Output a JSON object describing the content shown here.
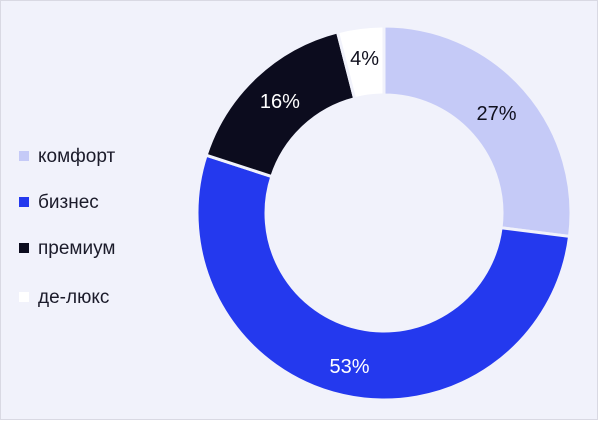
{
  "chart_data": {
    "type": "pie",
    "title": "",
    "categories": [
      "комфорт",
      "бизнес",
      "премиум",
      "де-люкс"
    ],
    "values": [
      27,
      53,
      16,
      4
    ],
    "value_labels": [
      "27%",
      "53%",
      "16%",
      "4%"
    ],
    "colors": [
      "#c5caf7",
      "#2439ee",
      "#0c0c1e",
      "#ffffff"
    ],
    "label_colors": [
      "#10101e",
      "#ffffff",
      "#ffffff",
      "#10101e"
    ],
    "donut": true,
    "legend_position": "left"
  }
}
